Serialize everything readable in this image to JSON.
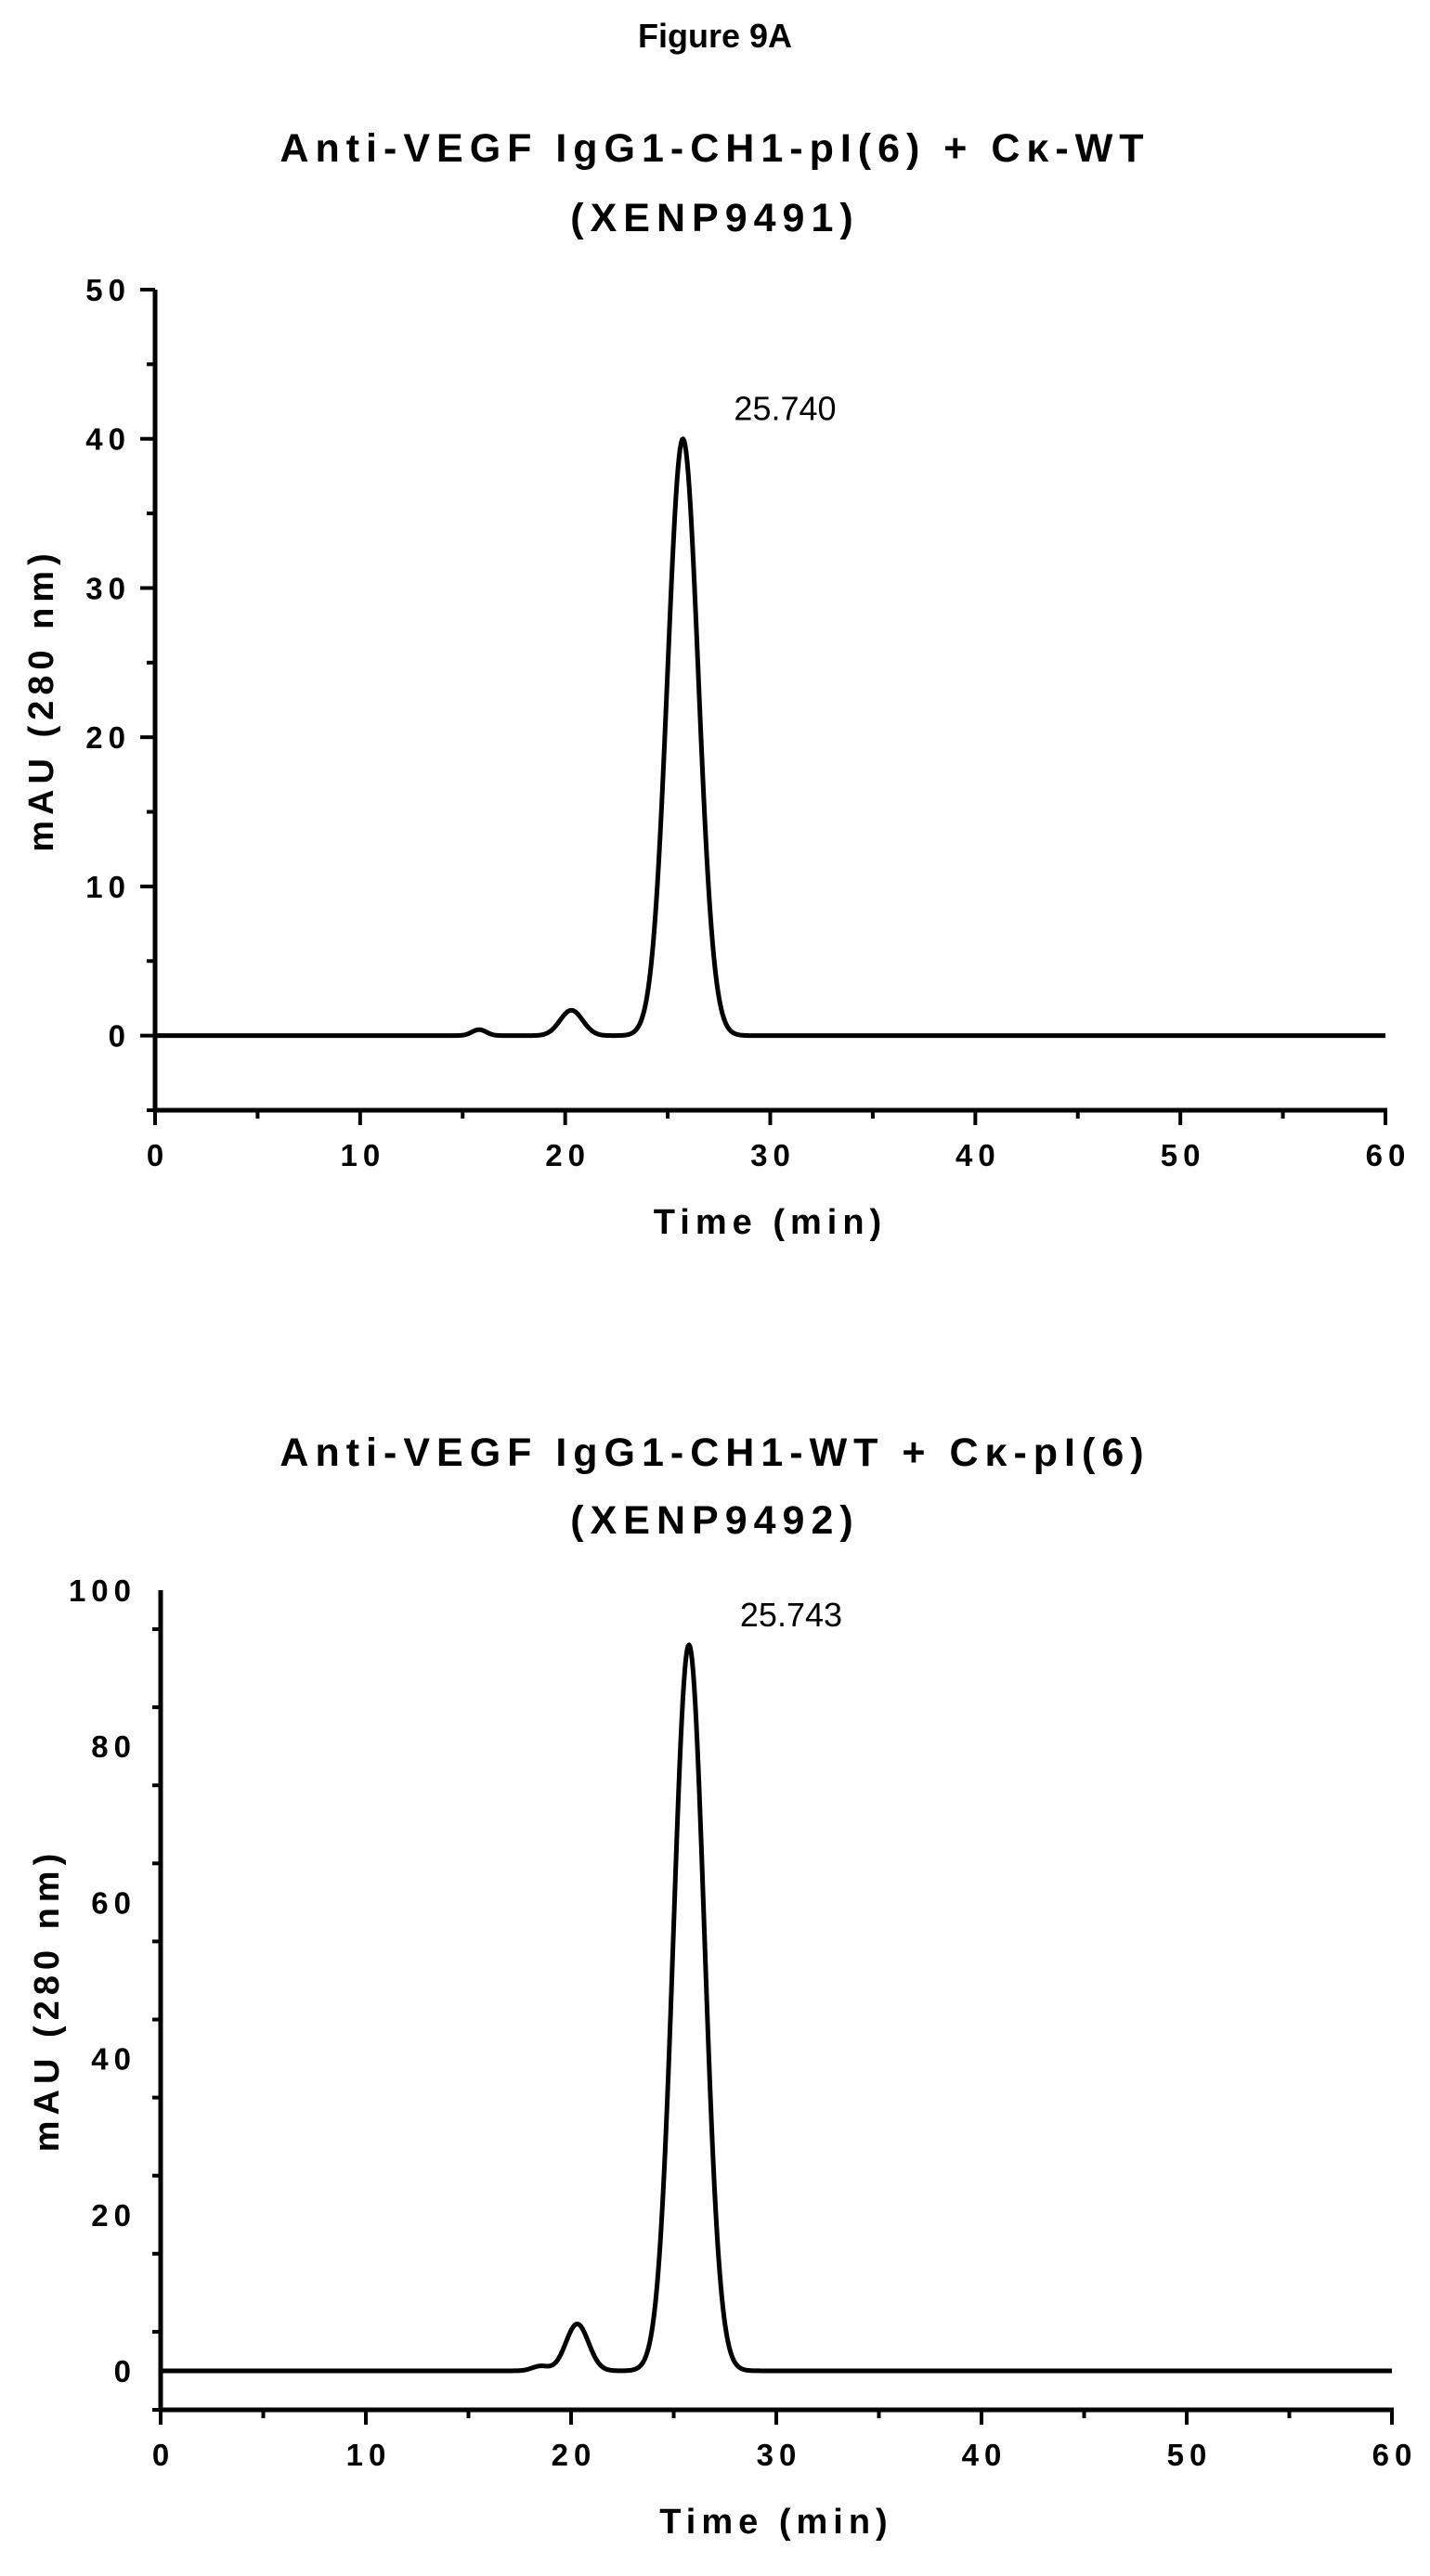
{
  "figure_label": "Figure 9A",
  "chart_data": [
    {
      "type": "line",
      "title": "Anti-VEGF IgG1-CH1-pI(6) + Cκ-WT",
      "subtitle": "(XENP9491)",
      "xlabel": "Time (min)",
      "ylabel": "mAU (280 nm)",
      "xlim": [
        0,
        60
      ],
      "ylim": [
        -5,
        50
      ],
      "x_ticks": [
        0,
        10,
        20,
        30,
        40,
        50,
        60
      ],
      "y_ticks": [
        0,
        10,
        20,
        30,
        40,
        50
      ],
      "grid": false,
      "annotations": [
        {
          "text": "25.740",
          "x": 25.74
        }
      ],
      "peaks": [
        {
          "center": 15.8,
          "height": 0.4,
          "width": 0.35
        },
        {
          "center": 20.3,
          "height": 1.7,
          "width": 0.55
        },
        {
          "center": 25.74,
          "height": 40.0,
          "width": 0.75
        }
      ],
      "baseline": 0
    },
    {
      "type": "line",
      "title": "Anti-VEGF IgG1-CH1-WT + Cκ-pI(6)",
      "subtitle": "(XENP9492)",
      "xlabel": "Time (min)",
      "ylabel": "mAU (280 nm)",
      "xlim": [
        0,
        60
      ],
      "ylim": [
        -5,
        100
      ],
      "x_ticks": [
        0,
        10,
        20,
        30,
        40,
        50,
        60
      ],
      "y_ticks": [
        0,
        20,
        40,
        60,
        80,
        100
      ],
      "grid": false,
      "annotations": [
        {
          "text": "25.743",
          "x": 25.743
        }
      ],
      "peaks": [
        {
          "center": 18.5,
          "height": 0.6,
          "width": 0.4
        },
        {
          "center": 20.3,
          "height": 6.0,
          "width": 0.55
        },
        {
          "center": 25.743,
          "height": 93.0,
          "width": 0.75
        }
      ],
      "baseline": 0
    }
  ]
}
